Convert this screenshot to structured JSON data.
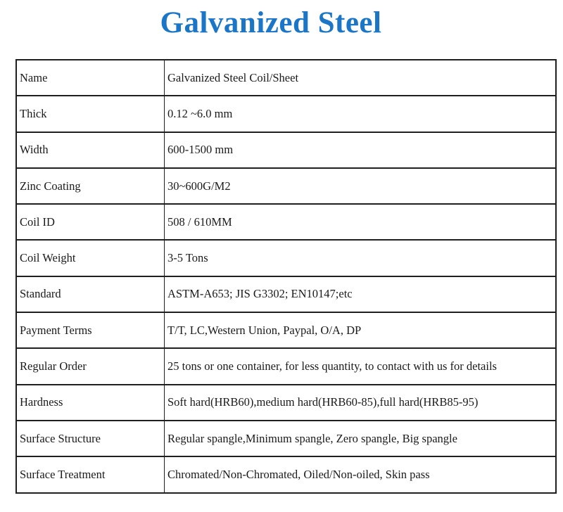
{
  "page": {
    "title": "Galvanized Steel",
    "title_color": "#1b76c8"
  },
  "table": {
    "rows": [
      {
        "label": "Name",
        "value": "Galvanized Steel Coil/Sheet"
      },
      {
        "label": "Thick",
        "value": "0.12 ~6.0 mm"
      },
      {
        "label": "Width",
        "value": "600-1500 mm"
      },
      {
        "label": "Zinc Coating",
        "value": "30~600G/M2"
      },
      {
        "label": "Coil ID",
        "value": "508 / 610MM"
      },
      {
        "label": "Coil Weight",
        "value": "3-5 Tons"
      },
      {
        "label": "Standard",
        "value": "ASTM-A653; JIS G3302; EN10147;etc"
      },
      {
        "label": "Payment Terms",
        "value": "T/T, LC,Western Union, Paypal, O/A, DP"
      },
      {
        "label": "Regular Order",
        "value": "25 tons or one container, for less quantity, to contact with us for details"
      },
      {
        "label": "Hardness",
        "value": "Soft hard(HRB60),medium hard(HRB60-85),full hard(HRB85-95)"
      },
      {
        "label": "Surface Structure",
        "value": "Regular spangle,Minimum spangle, Zero spangle, Big spangle"
      },
      {
        "label": "Surface Treatment",
        "value": "Chromated/Non-Chromated, Oiled/Non-oiled, Skin pass"
      }
    ]
  }
}
